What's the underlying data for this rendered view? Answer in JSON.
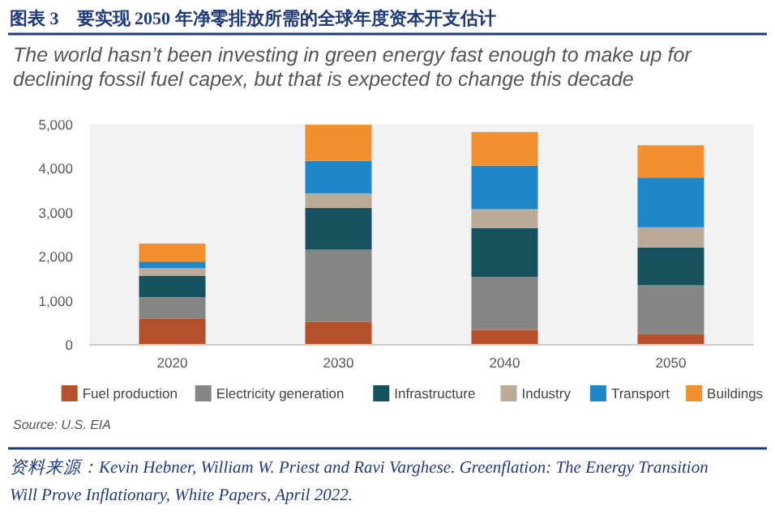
{
  "chart_data": {
    "type": "bar",
    "stacked": true,
    "title": "图表 3　要实现 2050 年净零排放所需的全球年度资本开支估计",
    "subtitle": "The world hasn’t been investing in green energy fast enough to make up for declining fossil fuel capex, but that is expected to change this decade",
    "categories": [
      "2020",
      "2030",
      "2040",
      "2050"
    ],
    "series": [
      {
        "name": "Fuel production",
        "color": "#b5512a",
        "values": [
          590,
          520,
          340,
          250
        ]
      },
      {
        "name": "Electricity generation",
        "color": "#858585",
        "values": [
          490,
          1640,
          1200,
          1100
        ]
      },
      {
        "name": "Infrastructure",
        "color": "#17535f",
        "values": [
          490,
          950,
          1110,
          860
        ]
      },
      {
        "name": "Industry",
        "color": "#bcaa98",
        "values": [
          170,
          330,
          430,
          460
        ]
      },
      {
        "name": "Transport",
        "color": "#1f87c8",
        "values": [
          150,
          740,
          990,
          1130
        ]
      },
      {
        "name": "Buildings",
        "color": "#f28f2f",
        "values": [
          410,
          820,
          760,
          730
        ]
      }
    ],
    "ylim": [
      0,
      5000
    ],
    "yticks": [
      {
        "value": 0,
        "label": "0"
      },
      {
        "value": 1000,
        "label": "1,000"
      },
      {
        "value": 2000,
        "label": "2,000"
      },
      {
        "value": 3000,
        "label": "3,000"
      },
      {
        "value": 4000,
        "label": "4,000"
      },
      {
        "value": 5000,
        "label": "5,000"
      }
    ],
    "grid": false,
    "legend": "bottom",
    "annotations": [
      "Source: U.S. EIA",
      "资料来源：Kevin Hebner, William W. Priest and Ravi Varghese. Greenflation: The Energy Transition Will Prove Inflationary, White Papers, April 2022."
    ]
  }
}
